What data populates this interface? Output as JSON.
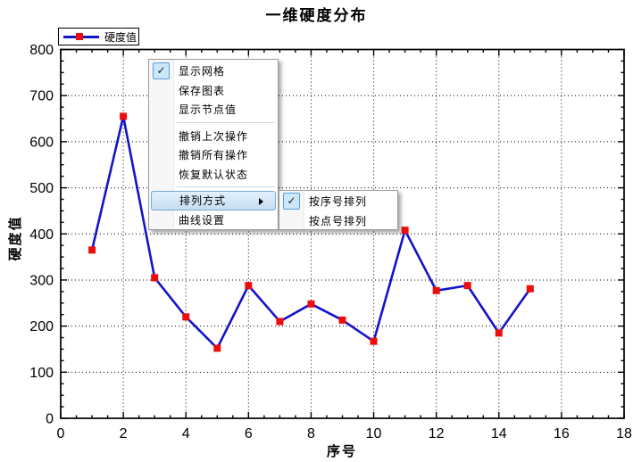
{
  "chart_data": {
    "type": "line",
    "title": "一维硬度分布",
    "xlabel": "序号",
    "ylabel": "硬度值",
    "xlim": [
      0,
      18
    ],
    "ylim": [
      0,
      800
    ],
    "x_major_step": 2,
    "x_minor_step": 0.5,
    "y_major_step": 100,
    "y_minor_step": 25,
    "grid": true,
    "legend_position": "top-left",
    "series": [
      {
        "name": "硬度值",
        "x": [
          1,
          2,
          3,
          4,
          5,
          6,
          7,
          8,
          9,
          10,
          11,
          12,
          13,
          14,
          15
        ],
        "values": [
          365,
          655,
          305,
          220,
          152,
          288,
          210,
          248,
          213,
          167,
          408,
          277,
          288,
          185,
          281
        ],
        "line_color": "#1414c8",
        "marker": "square",
        "marker_color": "#ee0d0d"
      }
    ]
  },
  "legend": {
    "label": "硬度值",
    "line_color": "#1414c8",
    "marker_color": "#ee0d0d"
  },
  "context_menu": {
    "items": [
      {
        "type": "check",
        "label": "显示网格",
        "checked": true
      },
      {
        "type": "normal",
        "label": "保存图表"
      },
      {
        "type": "normal",
        "label": "显示节点值"
      },
      {
        "type": "separator"
      },
      {
        "type": "normal",
        "label": "撤销上次操作"
      },
      {
        "type": "normal",
        "label": "撤销所有操作"
      },
      {
        "type": "normal",
        "label": "恢复默认状态"
      },
      {
        "type": "separator"
      },
      {
        "type": "submenu-parent",
        "label": "排列方式",
        "highlighted": true
      },
      {
        "type": "normal",
        "label": "曲线设置"
      }
    ],
    "check_glyph": "✓",
    "submenu": {
      "items": [
        {
          "type": "check",
          "label": "按序号排列",
          "checked": true
        },
        {
          "type": "normal",
          "label": "按点号排列"
        }
      ]
    }
  },
  "colors": {
    "line": "#1414c8",
    "marker": "#ee0d0d",
    "menu_highlight_border": "#7ba7d4",
    "check_box_bg": "#cbe7f8",
    "check_box_border": "#569de0"
  }
}
